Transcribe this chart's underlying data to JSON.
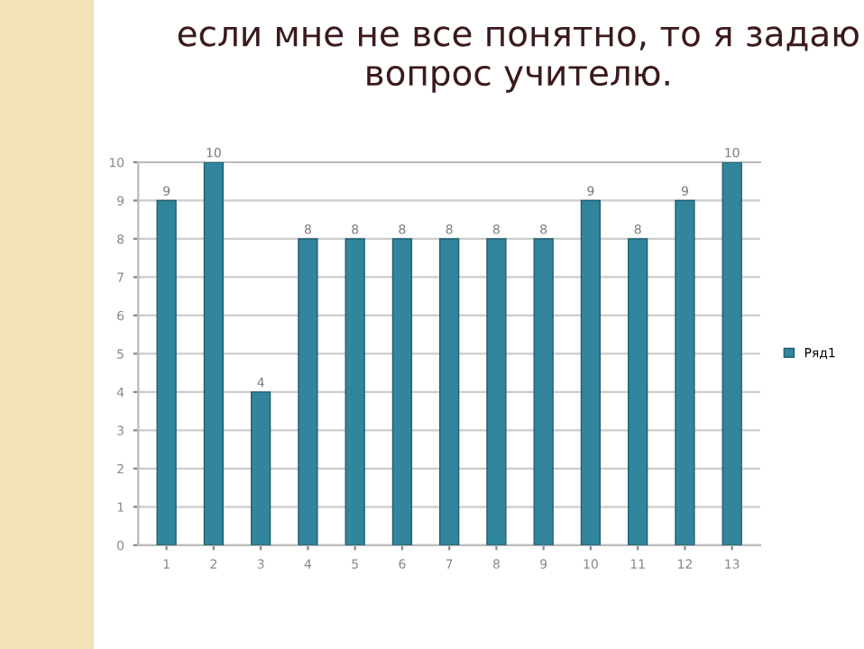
{
  "chart_data": {
    "type": "bar",
    "title": "если мне не все понятно, то я задаю вопрос учителю.",
    "categories": [
      "1",
      "2",
      "3",
      "4",
      "5",
      "6",
      "7",
      "8",
      "9",
      "10",
      "11",
      "12",
      "13"
    ],
    "series": [
      {
        "name": "Ряд1",
        "color": "#31859c",
        "values": [
          9,
          10,
          4,
          8,
          8,
          8,
          8,
          8,
          8,
          9,
          8,
          9,
          10
        ]
      }
    ],
    "ylim": [
      0,
      10
    ],
    "yticks": [
      0,
      1,
      2,
      3,
      4,
      5,
      6,
      7,
      8,
      9,
      10
    ],
    "grid": "y",
    "legend": "right",
    "data_labels": true
  }
}
